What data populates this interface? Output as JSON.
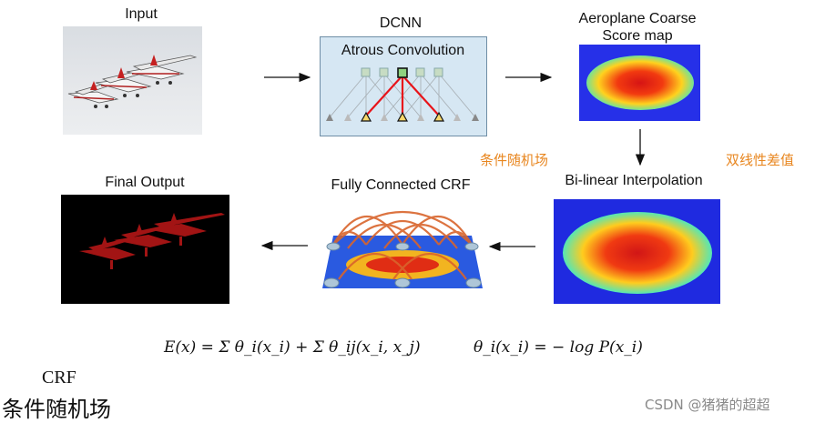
{
  "labels": {
    "input": "Input",
    "dcnn": "DCNN",
    "atrous": "Atrous Convolution",
    "coarse_line1": "Aeroplane Coarse",
    "coarse_line2": "Score map",
    "bilinear": "Bi-linear Interpolation",
    "crf": "Fully Connected CRF",
    "final": "Final Output"
  },
  "annotations": {
    "crf_cn": "条件随机场",
    "bilinear_cn": "双线性差值"
  },
  "formula": {
    "energy": "E(x) = Σ θ_i(x_i) + Σ θ_ij(x_i, x_j)",
    "unary": "θ_i(x_i) = − log P(x_i)"
  },
  "footer": {
    "crf": "CRF",
    "crf_cn": "条件随机场"
  },
  "watermark": "CSDN @猪猪的超超",
  "colors": {
    "arrow": "#111111",
    "annotation": "#e8861f",
    "dcnn_box_bg": "#d6e7f3",
    "highlight": "#e8141a"
  }
}
